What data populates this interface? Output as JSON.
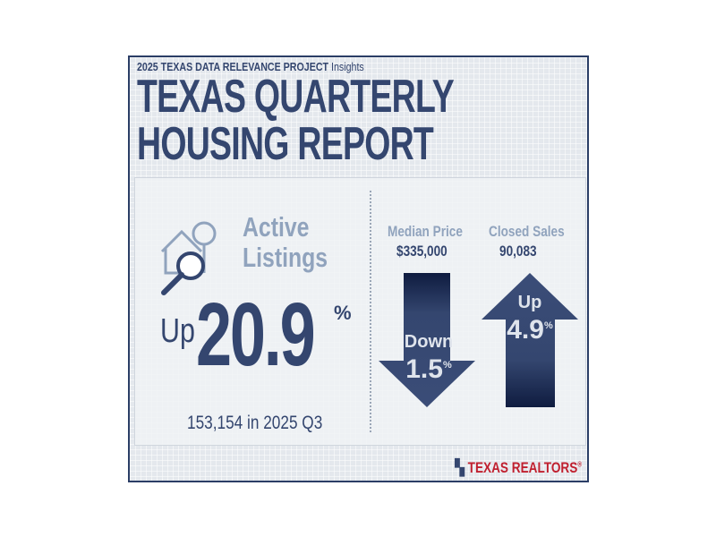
{
  "header": {
    "project": "2025 TEXAS DATA RELEVANCE PROJECT",
    "insights": "Insights",
    "title_line1": "TEXAS QUARTERLY",
    "title_line2": "HOUSING REPORT"
  },
  "active_listings": {
    "label_line1": "Active",
    "label_line2": "Listings",
    "direction": "Up",
    "value": "20.9",
    "unit": "%",
    "detail": "153,154 in 2025 Q3"
  },
  "median_price": {
    "label": "Median Price",
    "value": "$335,000",
    "direction": "Down",
    "change": "1.5",
    "unit": "%"
  },
  "closed_sales": {
    "label": "Closed Sales",
    "value": "90,083",
    "direction": "Up",
    "change": "4.9",
    "unit": "%"
  },
  "brand": {
    "name": "TEXAS REALTORS",
    "mark": "®"
  },
  "colors": {
    "navy": "#34466f",
    "light": "#90a3bd",
    "red": "#c0202f"
  }
}
